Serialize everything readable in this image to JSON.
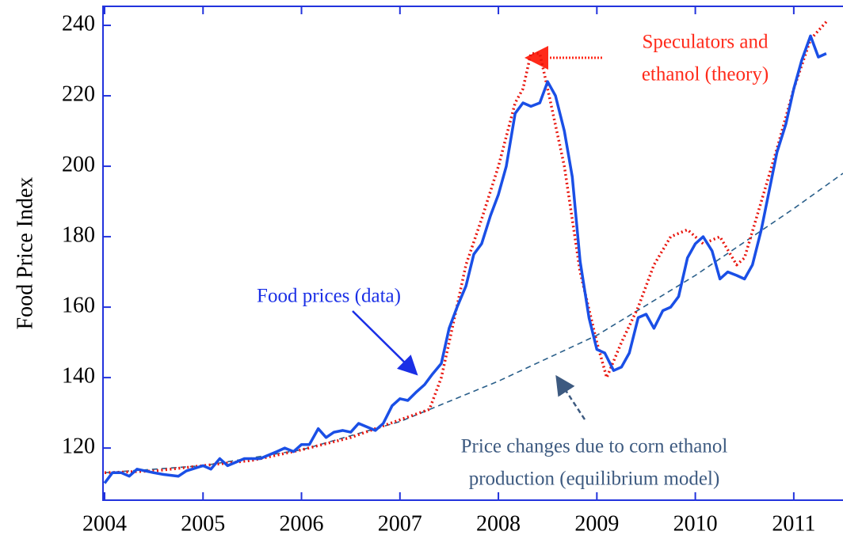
{
  "chart_data": {
    "type": "line",
    "y_label": "Food Price Index",
    "xlim": [
      2003.984,
      2011.5
    ],
    "ylim": [
      105.2,
      245.4
    ],
    "xticks": [
      2004,
      2005,
      2006,
      2007,
      2008,
      2009,
      2010,
      2011
    ],
    "yticks": [
      120,
      140,
      160,
      180,
      200,
      220,
      240
    ],
    "annotations": [
      {
        "lines": [
          "Speculators and",
          "ethanol (theory)"
        ],
        "color": "#ff2a1a"
      },
      {
        "lines": [
          "Food prices (data)"
        ],
        "color": "#1a2fe6"
      },
      {
        "lines": [
          "Price changes due to corn ethanol",
          "production (equilibrium model)"
        ],
        "color": "#3d5a80"
      }
    ],
    "series": [
      {
        "color": "#1a4fe6",
        "style": "solid",
        "x": [
          2004.0,
          2004.08,
          2004.17,
          2004.25,
          2004.33,
          2004.5,
          2004.6,
          2004.75,
          2004.83,
          2005.0,
          2005.08,
          2005.17,
          2005.25,
          2005.42,
          2005.58,
          2005.75,
          2005.83,
          2005.92,
          2006.0,
          2006.08,
          2006.17,
          2006.25,
          2006.33,
          2006.42,
          2006.5,
          2006.58,
          2006.75,
          2006.83,
          2006.92,
          2007.0,
          2007.08,
          2007.17,
          2007.25,
          2007.33,
          2007.42,
          2007.5,
          2007.58,
          2007.67,
          2007.75,
          2007.83,
          2007.92,
          2008.0,
          2008.08,
          2008.17,
          2008.25,
          2008.33,
          2008.42,
          2008.5,
          2008.58,
          2008.67,
          2008.75,
          2008.83,
          2008.92,
          2009.0,
          2009.08,
          2009.17,
          2009.25,
          2009.33,
          2009.42,
          2009.5,
          2009.58,
          2009.67,
          2009.75,
          2009.83,
          2009.92,
          2010.0,
          2010.08,
          2010.17,
          2010.25,
          2010.33,
          2010.42,
          2010.5,
          2010.58,
          2010.67,
          2010.75,
          2010.83,
          2010.92,
          2011.0,
          2011.08,
          2011.17,
          2011.25,
          2011.33
        ],
        "values": [
          110,
          113,
          113,
          112,
          114,
          113,
          112.5,
          112,
          113.5,
          115,
          114,
          117,
          115,
          117,
          117,
          119,
          120,
          119,
          121,
          121,
          125.5,
          123,
          124.5,
          125,
          124.5,
          127,
          125,
          127,
          132,
          134,
          133.5,
          136,
          138,
          141,
          144,
          154,
          160,
          166,
          175,
          178,
          186,
          192,
          200,
          215,
          218,
          217,
          218,
          224,
          220,
          210,
          197,
          173,
          157,
          148,
          147,
          142,
          143,
          147,
          157,
          158,
          154,
          159,
          160,
          163,
          174,
          178,
          180,
          176,
          168,
          170,
          169,
          168,
          172,
          182,
          193,
          204,
          212,
          222,
          230,
          237,
          231,
          232
        ]
      },
      {
        "color": "#e8140c",
        "style": "dotted",
        "x": [
          2004.0,
          2004.5,
          2005.0,
          2005.5,
          2006.0,
          2006.5,
          2007.0,
          2007.3,
          2007.42,
          2007.5,
          2007.67,
          2007.83,
          2008.0,
          2008.17,
          2008.25,
          2008.33,
          2008.42,
          2008.5,
          2008.67,
          2008.83,
          2009.0,
          2009.1,
          2009.25,
          2009.42,
          2009.58,
          2009.75,
          2009.92,
          2010.08,
          2010.25,
          2010.42,
          2010.5,
          2010.67,
          2010.83,
          2011.0,
          2011.17,
          2011.33
        ],
        "values": [
          113,
          113.5,
          115,
          116.5,
          119.5,
          123,
          128,
          131,
          140,
          150,
          172,
          185,
          200,
          218,
          222,
          232,
          232,
          222,
          200,
          170,
          150,
          140,
          150,
          160,
          172,
          180,
          182,
          178,
          180,
          172,
          174,
          190,
          205,
          222,
          236,
          241
        ]
      },
      {
        "color": "#2a5f8a",
        "style": "dashed",
        "x": [
          2004,
          2005,
          2006,
          2007,
          2008,
          2009,
          2010,
          2011,
          2011.5
        ],
        "values": [
          113,
          115,
          119.5,
          127.5,
          139,
          152,
          169,
          188,
          198
        ]
      }
    ]
  }
}
